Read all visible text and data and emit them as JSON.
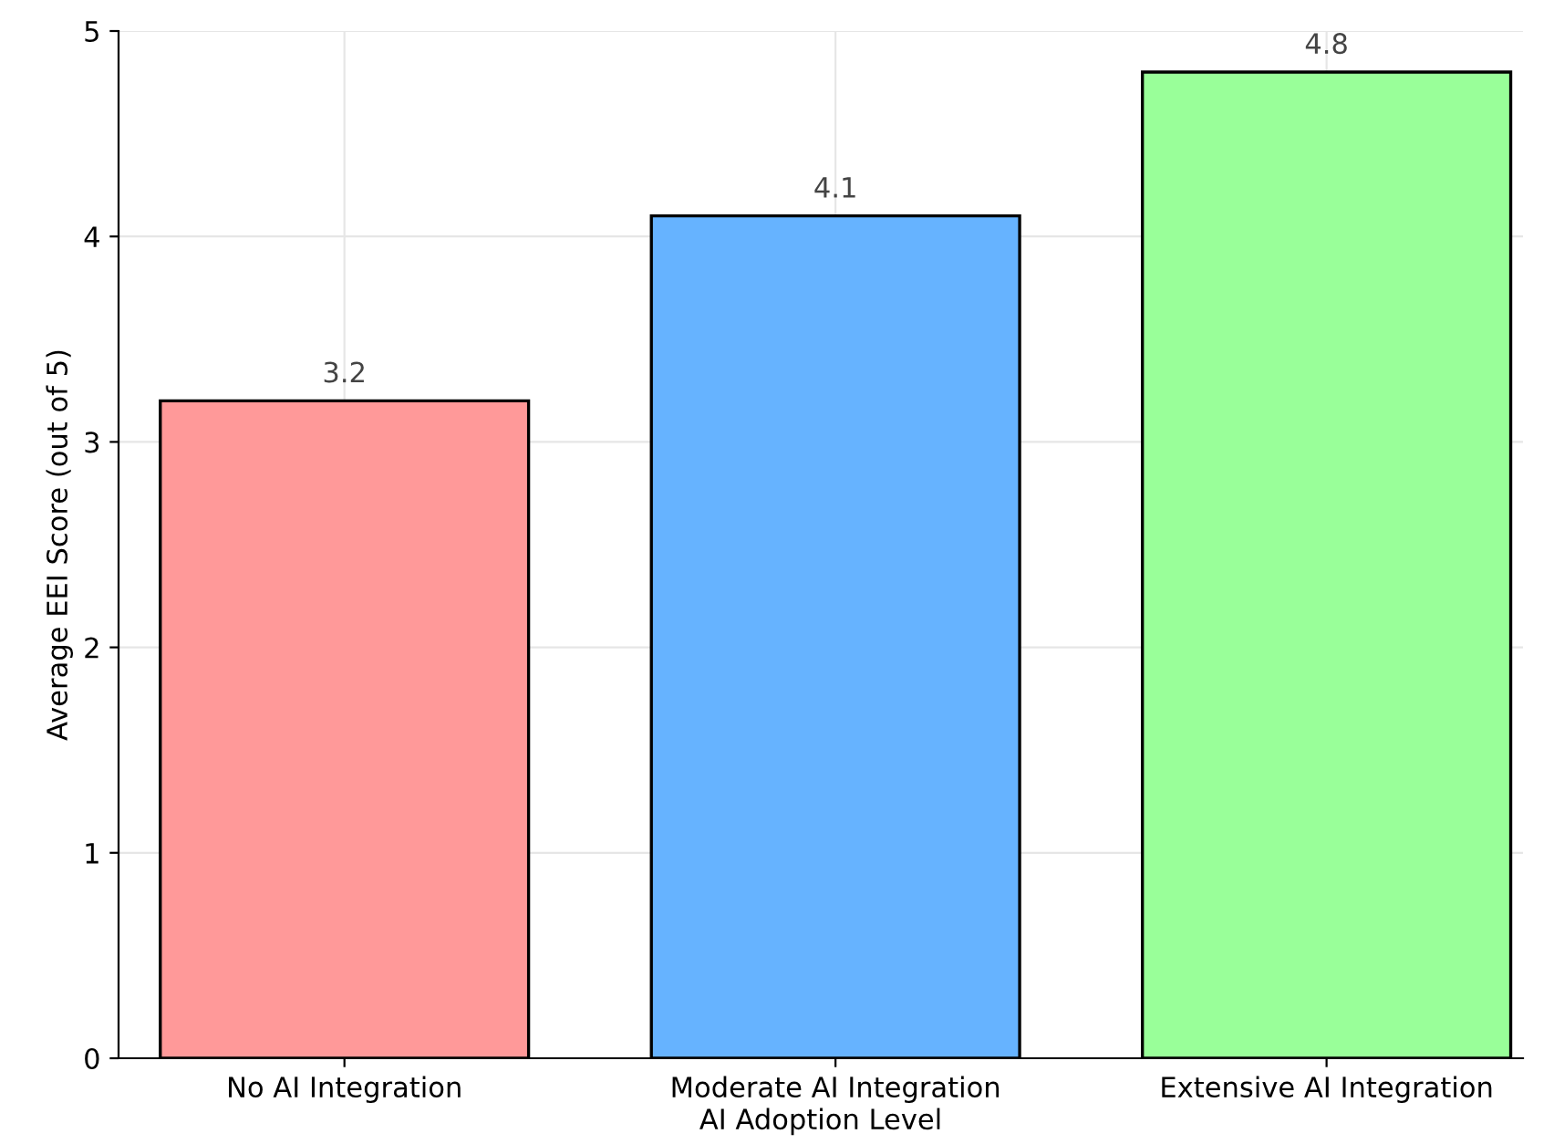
{
  "chart_data": {
    "type": "bar",
    "xlabel": "AI Adoption Level",
    "ylabel": "Average EEI Score (out of 5)",
    "categories": [
      "No AI Integration",
      "Moderate AI Integration",
      "Extensive AI Integration"
    ],
    "values": [
      3.2,
      4.1,
      4.8
    ],
    "colors": [
      "#ff9999",
      "#66b3ff",
      "#99ff99"
    ],
    "ylim": [
      0,
      5
    ],
    "yticks": [
      0,
      1,
      2,
      3,
      4,
      5
    ],
    "grid": true,
    "data_labels": true
  }
}
